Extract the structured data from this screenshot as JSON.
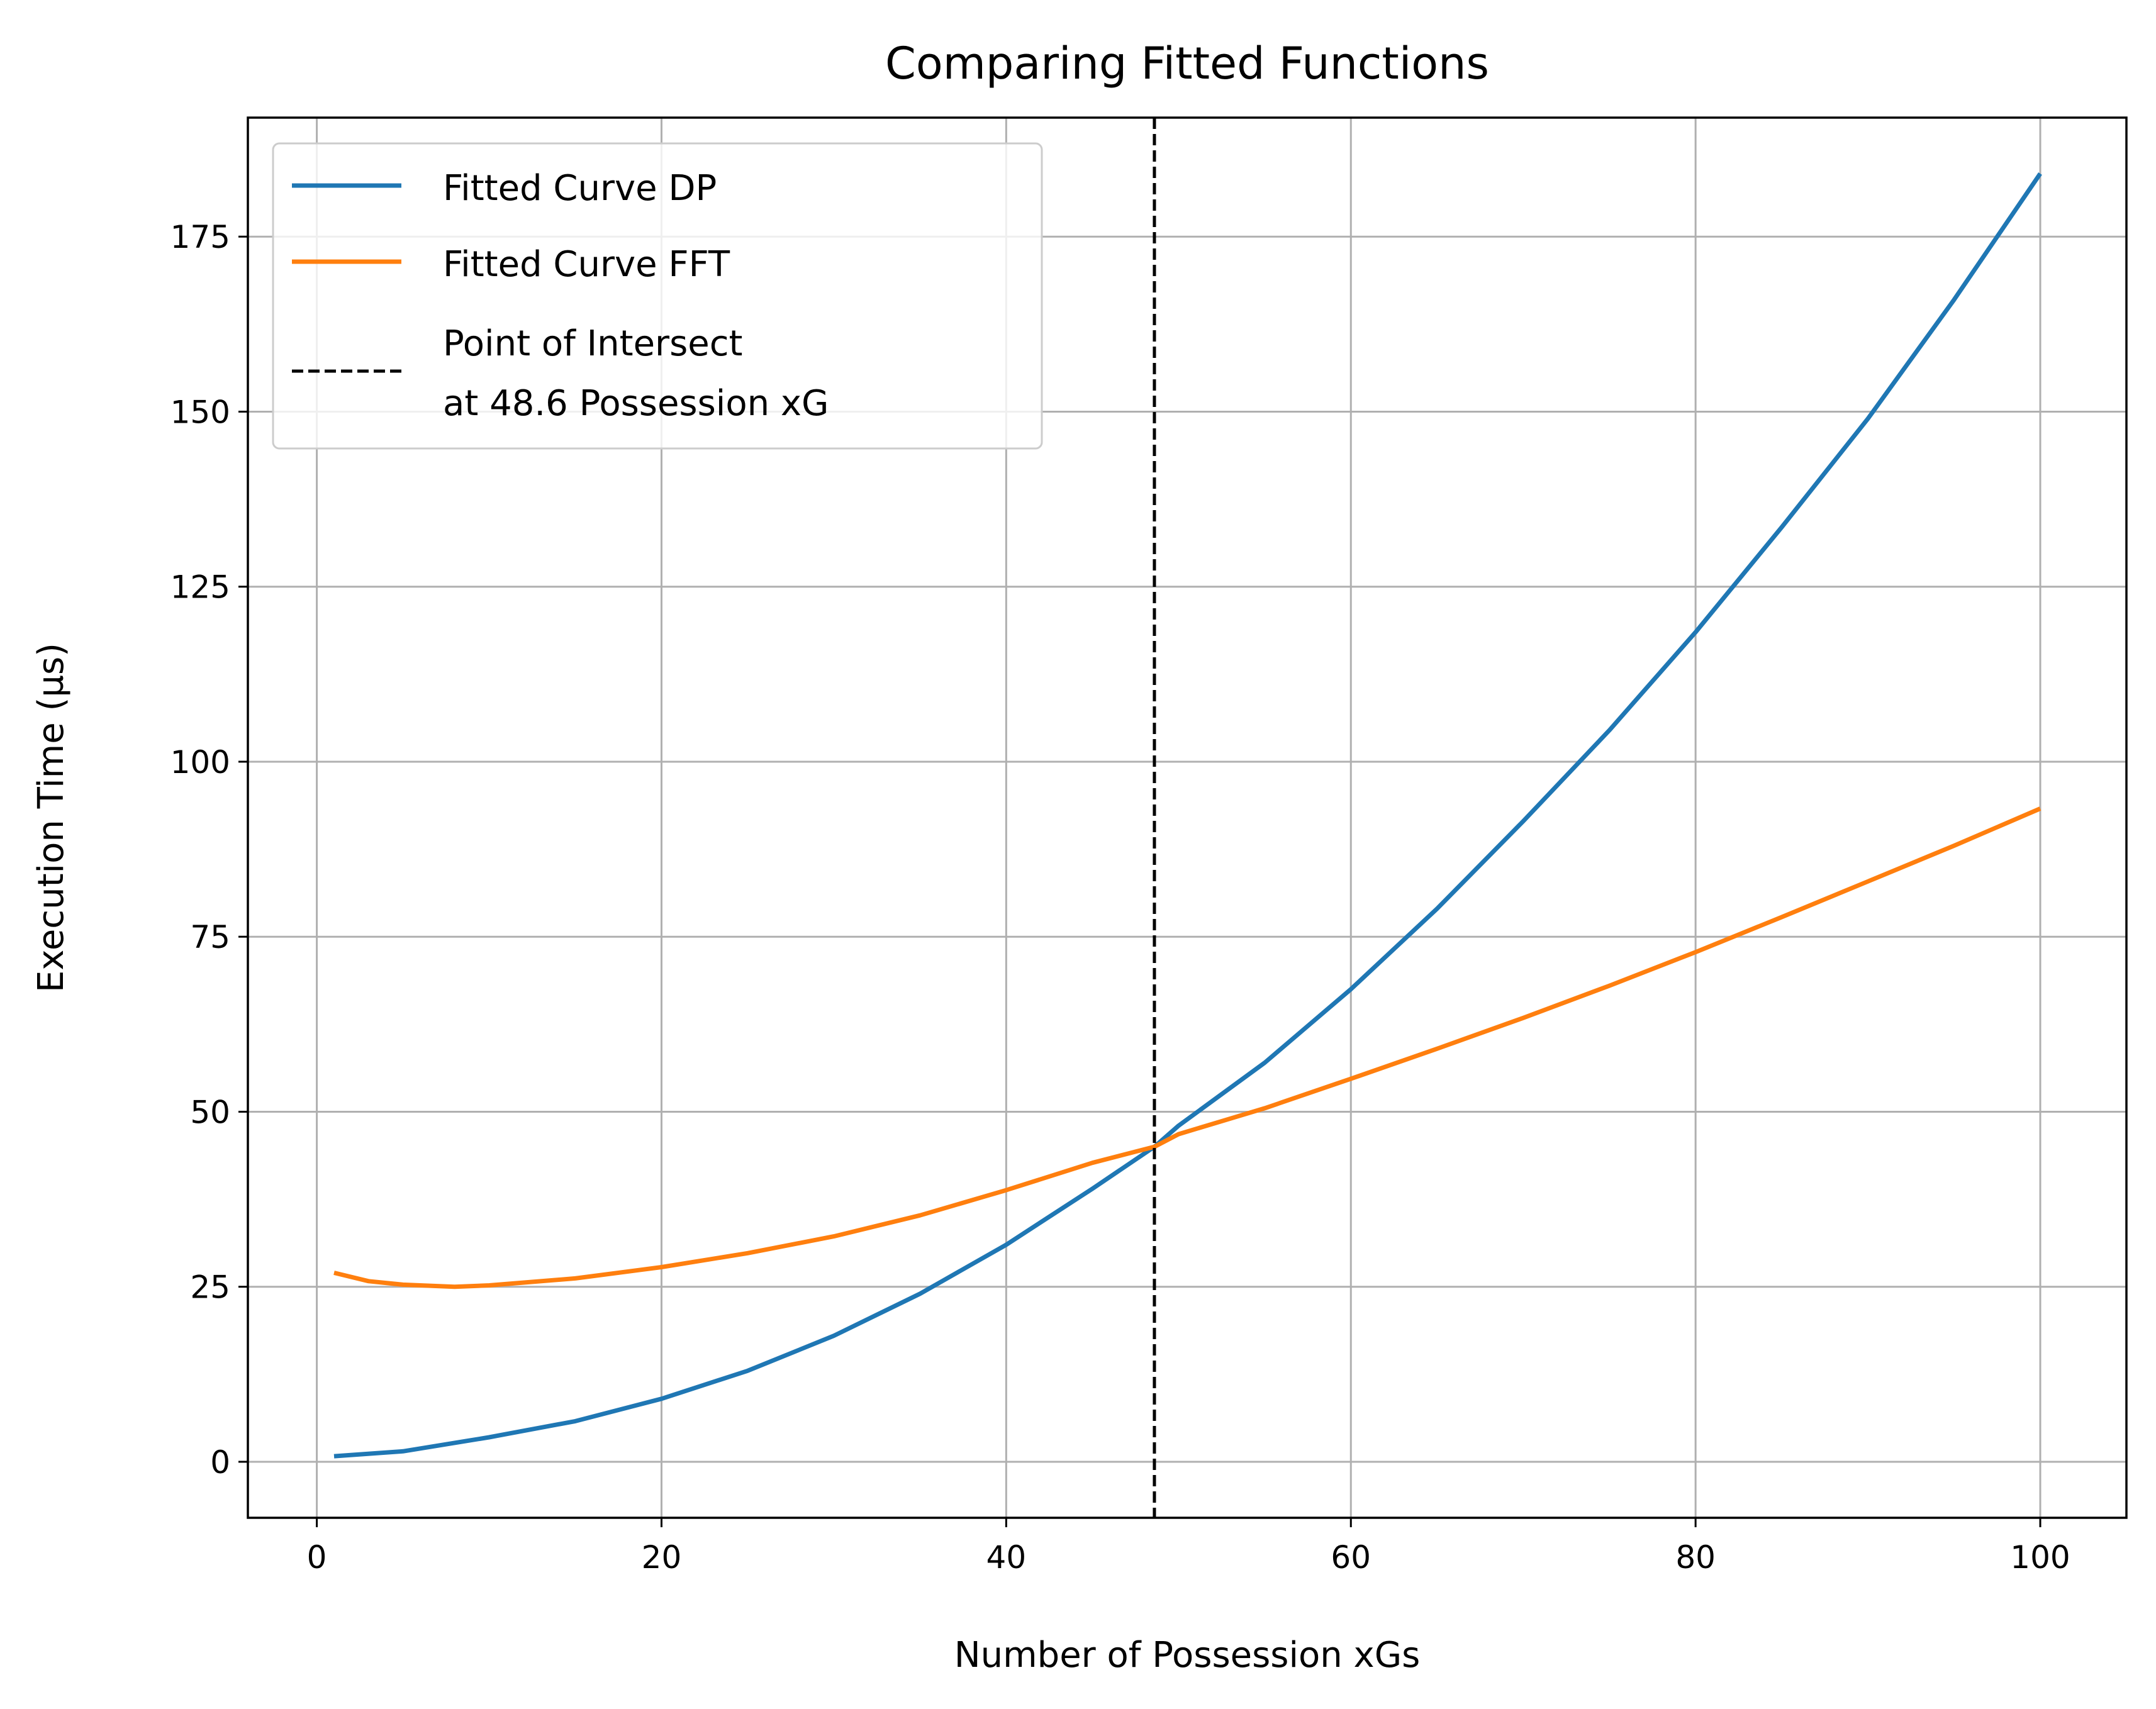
{
  "chart_data": {
    "type": "line",
    "title": "Comparing Fitted Functions",
    "xlabel": "Number of Possession xGs",
    "ylabel": "Execution Time (µs)",
    "xlim": [
      -4,
      105
    ],
    "ylim": [
      -8,
      192
    ],
    "xticks": [
      0,
      20,
      40,
      60,
      80,
      100
    ],
    "yticks": [
      0,
      25,
      50,
      75,
      100,
      125,
      150,
      175
    ],
    "grid": true,
    "legend_position": "top-left",
    "series": [
      {
        "name": "Fitted Curve DP",
        "color": "#1f77b4",
        "x": [
          1,
          5,
          10,
          15,
          20,
          25,
          30,
          35,
          40,
          45,
          48.6,
          50,
          55,
          60,
          65,
          70,
          75,
          80,
          85,
          90,
          95,
          100
        ],
        "y": [
          0.8,
          1.5,
          3.5,
          5.8,
          9,
          13,
          18,
          24,
          31,
          39,
          45,
          48,
          57,
          67.5,
          79,
          91.5,
          104.5,
          118.5,
          133.5,
          149,
          166,
          184
        ]
      },
      {
        "name": "Fitted Curve FFT",
        "color": "#ff7f0e",
        "x": [
          1,
          3,
          5,
          8,
          10,
          15,
          20,
          25,
          30,
          35,
          40,
          45,
          48.6,
          50,
          55,
          60,
          65,
          70,
          75,
          80,
          85,
          90,
          95,
          100
        ],
        "y": [
          27,
          25.8,
          25.3,
          25,
          25.2,
          26.2,
          27.8,
          29.8,
          32.2,
          35.2,
          38.8,
          42.7,
          45,
          46.8,
          50.5,
          54.7,
          59,
          63.4,
          68,
          72.8,
          77.8,
          82.9,
          88,
          93.3
        ]
      },
      {
        "name": "Point of Intersect\nat 48.6 Possession xG",
        "color": "#000000",
        "style": "dashed",
        "vline_x": 48.6
      }
    ]
  }
}
